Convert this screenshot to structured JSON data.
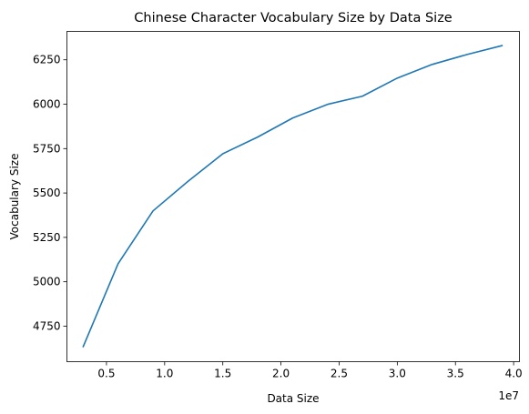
{
  "chart_data": {
    "type": "line",
    "title": "Chinese Character Vocabulary Size by Data Size",
    "xlabel": "Data Size",
    "ylabel": "Vocabulary Size",
    "x_offset_label": "1e7",
    "xlim": [
      1600000,
      40500000
    ],
    "ylim": [
      4550,
      6410
    ],
    "x_ticks": [
      5000000,
      10000000,
      15000000,
      20000000,
      25000000,
      30000000,
      35000000,
      40000000
    ],
    "x_tick_labels": [
      "0.5",
      "1.0",
      "1.5",
      "2.0",
      "2.5",
      "3.0",
      "3.5",
      "4.0"
    ],
    "y_ticks": [
      4750,
      5000,
      5250,
      5500,
      5750,
      6000,
      6250
    ],
    "y_tick_labels": [
      "4750",
      "5000",
      "5250",
      "5500",
      "5750",
      "6000",
      "6250"
    ],
    "grid": false,
    "line_color": "#1f77b4",
    "series": [
      {
        "x": [
          3000000,
          6000000,
          9000000,
          12000000,
          15000000,
          18000000,
          21000000,
          24000000,
          27000000,
          30000000,
          33000000,
          36000000,
          39000000
        ],
        "values": [
          4635,
          5102,
          5399,
          5565,
          5721,
          5815,
          5922,
          5999,
          6045,
          6147,
          6224,
          6280,
          6330
        ]
      }
    ]
  }
}
